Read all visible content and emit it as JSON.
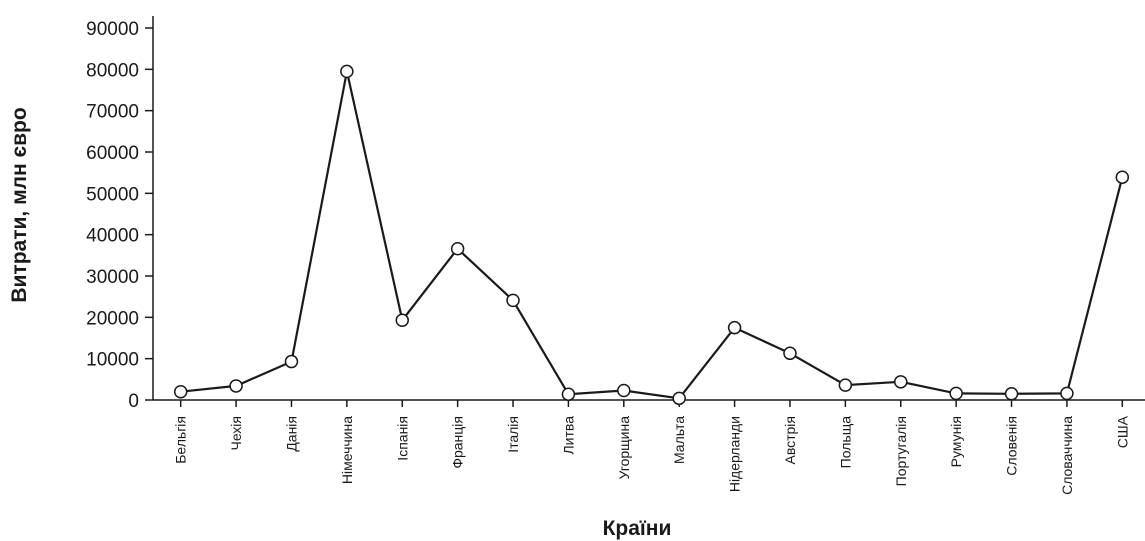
{
  "chart_data": {
    "type": "line",
    "title": "",
    "xlabel": "Країни",
    "ylabel": "Витрати, млн євро",
    "ylim": [
      0,
      90000
    ],
    "yticks": [
      0,
      10000,
      20000,
      30000,
      40000,
      50000,
      60000,
      70000,
      80000,
      90000
    ],
    "grid": false,
    "categories": [
      "Бельгія",
      "Чехія",
      "Данія",
      "Німеччина",
      "Іспанія",
      "Франція",
      "Італія",
      "Литва",
      "Угорщина",
      "Мальта",
      "Нідерланди",
      "Австрія",
      "Польща",
      "Португалія",
      "Румунія",
      "Словенія",
      "Словаччина",
      "США"
    ],
    "series": [
      {
        "values": [
          2000,
          3400,
          9300,
          79500,
          19300,
          36600,
          24100,
          1400,
          2300,
          400,
          17500,
          11300,
          3600,
          4400,
          1600,
          1500,
          1600,
          53900
        ]
      }
    ],
    "colors": {
      "line": "#1a1a1a",
      "marker_fill": "#ffffff"
    }
  }
}
